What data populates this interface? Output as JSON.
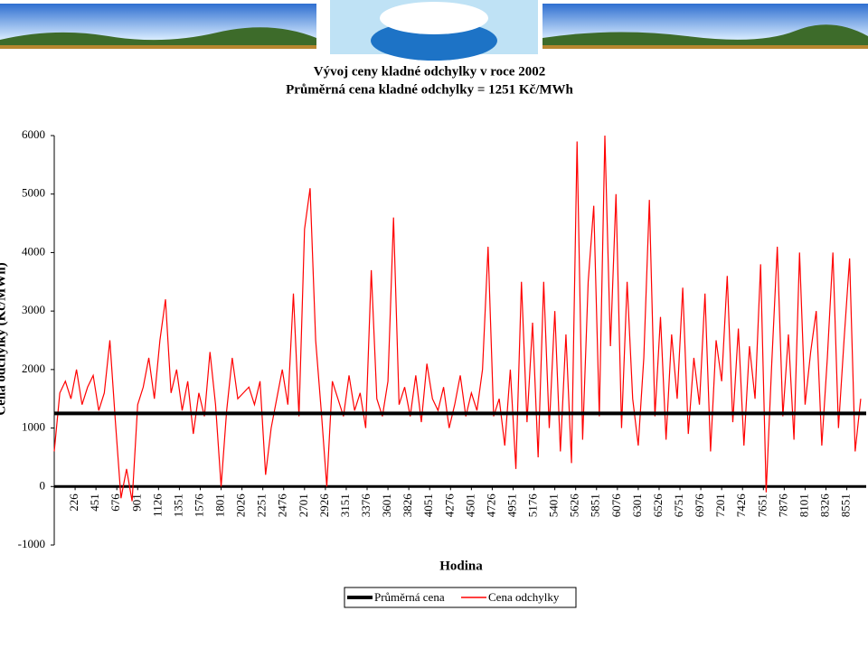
{
  "chart_data": {
    "type": "line",
    "title": "Vývoj ceny kladné odchylky v roce 2002",
    "subtitle": "Průměrná cena kladné odchylky = 1251 Kč/MWh",
    "y_label": "Cena odchylky (Kč/MWh)",
    "x_label": "Hodina",
    "xlim": [
      1,
      8760
    ],
    "xticks": [
      226,
      451,
      676,
      901,
      1126,
      1351,
      1576,
      1801,
      2026,
      2251,
      2476,
      2701,
      2926,
      3151,
      3376,
      3601,
      3826,
      4051,
      4276,
      4501,
      4726,
      4951,
      5176,
      5401,
      5626,
      5851,
      6076,
      6301,
      6526,
      6751,
      6976,
      7201,
      7426,
      7651,
      7876,
      8101,
      8326,
      8551
    ],
    "ylim": [
      -1000,
      6000
    ],
    "yticks": [
      -1000,
      0,
      1000,
      2000,
      3000,
      4000,
      5000,
      6000
    ],
    "series": [
      {
        "name": "Průměrná cena",
        "color": "#000000",
        "x": [
          1,
          8760
        ],
        "values": [
          1251,
          1251
        ]
      },
      {
        "name": "Cena odchylky",
        "color": "#ff0000",
        "x": [
          1,
          61,
          121,
          181,
          241,
          301,
          361,
          421,
          481,
          541,
          601,
          661,
          721,
          781,
          841,
          901,
          961,
          1021,
          1081,
          1141,
          1201,
          1261,
          1321,
          1381,
          1441,
          1501,
          1561,
          1621,
          1681,
          1741,
          1801,
          1861,
          1921,
          1981,
          2041,
          2101,
          2161,
          2221,
          2281,
          2341,
          2401,
          2461,
          2521,
          2581,
          2641,
          2701,
          2761,
          2821,
          2881,
          2941,
          3001,
          3061,
          3121,
          3181,
          3241,
          3301,
          3361,
          3421,
          3481,
          3541,
          3601,
          3661,
          3721,
          3781,
          3841,
          3901,
          3961,
          4021,
          4081,
          4141,
          4201,
          4261,
          4321,
          4381,
          4441,
          4501,
          4561,
          4621,
          4681,
          4741,
          4801,
          4861,
          4921,
          4981,
          5041,
          5101,
          5161,
          5221,
          5281,
          5341,
          5401,
          5461,
          5521,
          5581,
          5641,
          5701,
          5761,
          5821,
          5881,
          5941,
          6001,
          6061,
          6121,
          6181,
          6241,
          6301,
          6361,
          6421,
          6481,
          6541,
          6601,
          6661,
          6721,
          6781,
          6841,
          6901,
          6961,
          7021,
          7081,
          7141,
          7201,
          7261,
          7321,
          7381,
          7441,
          7501,
          7561,
          7621,
          7681,
          7741,
          7801,
          7861,
          7921,
          7981,
          8041,
          8101,
          8161,
          8221,
          8281,
          8341,
          8401,
          8461,
          8521,
          8581,
          8641,
          8701
        ],
        "values": [
          600,
          1600,
          1800,
          1500,
          2000,
          1400,
          1700,
          1900,
          1300,
          1600,
          2500,
          1100,
          -200,
          300,
          -250,
          1400,
          1700,
          2200,
          1500,
          2500,
          3200,
          1600,
          2000,
          1300,
          1800,
          900,
          1600,
          1200,
          2300,
          1400,
          0,
          1300,
          2200,
          1500,
          1600,
          1700,
          1400,
          1800,
          200,
          1000,
          1500,
          2000,
          1400,
          3300,
          1200,
          4400,
          5100,
          2500,
          1300,
          0,
          1800,
          1500,
          1200,
          1900,
          1300,
          1600,
          1000,
          3700,
          1500,
          1200,
          1800,
          4600,
          1400,
          1700,
          1200,
          1900,
          1100,
          2100,
          1500,
          1300,
          1700,
          1000,
          1400,
          1900,
          1200,
          1600,
          1300,
          2000,
          4100,
          1200,
          1500,
          700,
          2000,
          300,
          3500,
          1100,
          2800,
          500,
          3500,
          1000,
          3000,
          600,
          2600,
          400,
          5900,
          800,
          3500,
          4800,
          1200,
          6000,
          2400,
          5000,
          1000,
          3500,
          1500,
          700,
          2200,
          4900,
          1200,
          2900,
          800,
          2600,
          1500,
          3400,
          900,
          2200,
          1400,
          3300,
          600,
          2500,
          1800,
          3600,
          1100,
          2700,
          700,
          2400,
          1500,
          3800,
          -100,
          2100,
          4100,
          1200,
          2600,
          800,
          4000,
          1400,
          2300,
          3000,
          700,
          2200,
          4000,
          1000,
          2500,
          3900,
          600,
          1500
        ]
      }
    ]
  }
}
